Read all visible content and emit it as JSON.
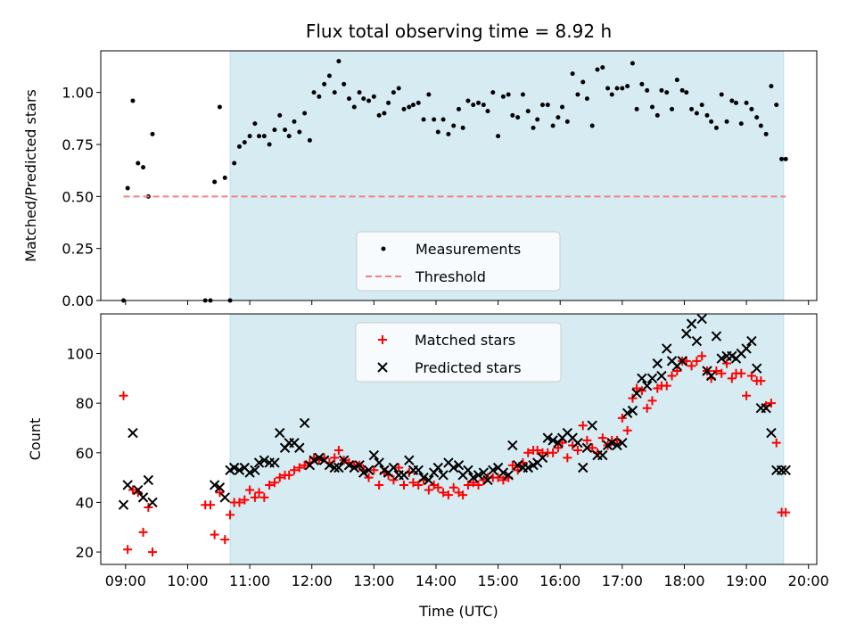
{
  "figure": {
    "title": "Flux total observing time = 8.92 h",
    "xlabel": "Time (UTC)",
    "x_ticks": [
      "09:00",
      "10:00",
      "11:00",
      "12:00",
      "13:00",
      "14:00",
      "15:00",
      "16:00",
      "17:00",
      "18:00",
      "19:00",
      "20:00"
    ]
  },
  "colors": {
    "shade": "#add8e6",
    "measurement": "#000000",
    "threshold": "#f08080",
    "matched": "#ff0000",
    "predicted": "#000000"
  },
  "chart_data": [
    {
      "type": "scatter",
      "ylabel": "Matched/Predicted stars",
      "xlim": [
        "08:36",
        "20:08"
      ],
      "ylim": [
        0,
        1.2
      ],
      "y_ticks": [
        "0.00",
        "0.25",
        "0.50",
        "0.75",
        "1.00"
      ],
      "shaded_span": [
        "10:41",
        "19:36"
      ],
      "legend_position": "lower center",
      "series": [
        {
          "name": "Measurements",
          "x": [
            "08:58",
            "09:02",
            "09:07",
            "09:12",
            "09:17",
            "09:22",
            "09:26",
            "10:17",
            "10:22",
            "10:26",
            "10:31",
            "10:36",
            "10:41",
            "10:45",
            "10:50",
            "10:55",
            "11:00",
            "11:05",
            "11:09",
            "11:14",
            "11:19",
            "11:24",
            "11:29",
            "11:34",
            "11:38",
            "11:43",
            "11:48",
            "11:53",
            "11:58",
            "12:02",
            "12:07",
            "12:12",
            "12:17",
            "12:22",
            "12:26",
            "12:31",
            "12:36",
            "12:41",
            "12:46",
            "12:50",
            "12:55",
            "13:00",
            "13:05",
            "13:10",
            "13:14",
            "13:19",
            "13:24",
            "13:29",
            "13:34",
            "13:38",
            "13:43",
            "13:48",
            "13:53",
            "13:58",
            "14:02",
            "14:07",
            "14:12",
            "14:17",
            "14:22",
            "14:26",
            "14:31",
            "14:36",
            "14:41",
            "14:46",
            "14:50",
            "14:55",
            "15:00",
            "15:05",
            "15:10",
            "15:14",
            "15:19",
            "15:24",
            "15:29",
            "15:34",
            "15:38",
            "15:43",
            "15:48",
            "15:53",
            "15:58",
            "16:02",
            "16:07",
            "16:12",
            "16:17",
            "16:22",
            "16:26",
            "16:31",
            "16:36",
            "16:41",
            "16:46",
            "16:50",
            "16:55",
            "17:00",
            "17:05",
            "17:10",
            "17:14",
            "17:19",
            "17:24",
            "17:29",
            "17:34",
            "17:38",
            "17:43",
            "17:48",
            "17:53",
            "17:58",
            "18:02",
            "18:07",
            "18:12",
            "18:17",
            "18:22",
            "18:26",
            "18:31",
            "18:36",
            "18:41",
            "18:46",
            "18:50",
            "18:55",
            "19:00",
            "19:05",
            "19:10",
            "19:14",
            "19:19",
            "19:24",
            "19:29",
            "19:34",
            "19:38"
          ],
          "y": [
            0.0,
            0.54,
            0.96,
            0.66,
            0.64,
            0.5,
            0.8,
            0.0,
            0.0,
            0.57,
            0.93,
            0.59,
            0.0,
            0.66,
            0.74,
            0.76,
            0.79,
            0.85,
            0.79,
            0.79,
            0.75,
            0.82,
            0.89,
            0.82,
            0.79,
            0.86,
            0.81,
            0.9,
            0.77,
            1.0,
            0.98,
            1.04,
            1.08,
            1.0,
            1.15,
            1.04,
            0.97,
            0.93,
            1.0,
            0.97,
            0.96,
            0.98,
            0.89,
            0.9,
            0.95,
            1.0,
            1.02,
            0.92,
            0.93,
            0.94,
            0.95,
            0.87,
            0.99,
            0.87,
            0.81,
            0.87,
            0.8,
            0.84,
            0.92,
            0.83,
            0.96,
            0.94,
            0.95,
            0.94,
            0.91,
            1.0,
            0.79,
            0.98,
            0.99,
            0.89,
            0.88,
            0.99,
            0.91,
            0.83,
            0.87,
            0.94,
            0.94,
            0.84,
            0.88,
            0.93,
            0.86,
            1.09,
            0.99,
            1.05,
            0.97,
            0.84,
            1.11,
            1.12,
            1.02,
            0.99,
            1.02,
            1.02,
            1.03,
            1.14,
            0.92,
            1.04,
            1.01,
            0.93,
            0.89,
            1.01,
            1.0,
            0.92,
            1.06,
            1.01,
            1.0,
            0.92,
            0.9,
            0.94,
            0.89,
            0.86,
            0.83,
            0.99,
            0.86,
            0.96,
            0.95,
            0.85,
            0.95,
            0.92,
            0.88,
            0.84,
            0.8,
            1.03,
            0.94,
            0.68,
            0.68
          ]
        },
        {
          "name": "Threshold",
          "x": [
            "08:58",
            "19:38"
          ],
          "y": [
            0.5,
            0.5
          ]
        }
      ]
    },
    {
      "type": "scatter",
      "ylabel": "Count",
      "xlim": [
        "08:36",
        "20:08"
      ],
      "ylim": [
        15,
        116
      ],
      "y_ticks": [
        "20",
        "40",
        "60",
        "80",
        "100"
      ],
      "shaded_span": [
        "10:41",
        "19:36"
      ],
      "legend_position": "upper center",
      "series": [
        {
          "name": "Matched stars",
          "x": [
            "08:58",
            "09:02",
            "09:07",
            "09:12",
            "09:17",
            "09:22",
            "09:26",
            "10:17",
            "10:22",
            "10:26",
            "10:31",
            "10:36",
            "10:41",
            "10:45",
            "10:50",
            "10:55",
            "11:00",
            "11:05",
            "11:09",
            "11:14",
            "11:19",
            "11:24",
            "11:29",
            "11:34",
            "11:38",
            "11:43",
            "11:48",
            "11:53",
            "11:58",
            "12:02",
            "12:07",
            "12:12",
            "12:17",
            "12:22",
            "12:26",
            "12:31",
            "12:36",
            "12:41",
            "12:46",
            "12:50",
            "12:55",
            "13:00",
            "13:05",
            "13:10",
            "13:14",
            "13:19",
            "13:24",
            "13:29",
            "13:34",
            "13:38",
            "13:43",
            "13:48",
            "13:53",
            "13:58",
            "14:02",
            "14:07",
            "14:12",
            "14:17",
            "14:22",
            "14:26",
            "14:31",
            "14:36",
            "14:41",
            "14:46",
            "14:50",
            "14:55",
            "15:00",
            "15:05",
            "15:10",
            "15:14",
            "15:19",
            "15:24",
            "15:29",
            "15:34",
            "15:38",
            "15:43",
            "15:48",
            "15:53",
            "15:58",
            "16:02",
            "16:07",
            "16:12",
            "16:17",
            "16:22",
            "16:26",
            "16:31",
            "16:36",
            "16:41",
            "16:46",
            "16:50",
            "16:55",
            "17:00",
            "17:05",
            "17:10",
            "17:14",
            "17:19",
            "17:24",
            "17:29",
            "17:34",
            "17:38",
            "17:43",
            "17:48",
            "17:53",
            "17:58",
            "18:02",
            "18:07",
            "18:12",
            "18:17",
            "18:22",
            "18:26",
            "18:31",
            "18:36",
            "18:41",
            "18:46",
            "18:50",
            "18:55",
            "19:00",
            "19:05",
            "19:10",
            "19:14",
            "19:19",
            "19:24",
            "19:29",
            "19:34",
            "19:38"
          ],
          "y": [
            83,
            21,
            45,
            44,
            28,
            38,
            20,
            39,
            39,
            27,
            44,
            25,
            35,
            40,
            40,
            41,
            45,
            42,
            44,
            42,
            47,
            48,
            50,
            51,
            51,
            53,
            54,
            55,
            56,
            58,
            57,
            58,
            56,
            58,
            61,
            57,
            56,
            55,
            55,
            53,
            50,
            53,
            47,
            52,
            51,
            49,
            54,
            47,
            52,
            48,
            47,
            49,
            45,
            47,
            46,
            44,
            43,
            46,
            44,
            43,
            47,
            48,
            47,
            49,
            50,
            50,
            50,
            49,
            50,
            55,
            53,
            56,
            60,
            61,
            61,
            60,
            60,
            60,
            62,
            64,
            58,
            63,
            61,
            71,
            65,
            62,
            60,
            66,
            63,
            65,
            65,
            74,
            69,
            82,
            86,
            85,
            78,
            81,
            86,
            87,
            87,
            91,
            93,
            97,
            97,
            95,
            97,
            99,
            93,
            90,
            93,
            92,
            96,
            90,
            92,
            92,
            83,
            91,
            89,
            89,
            79,
            80,
            64,
            36,
            36
          ]
        },
        {
          "name": "Predicted stars",
          "x": [
            "08:58",
            "09:02",
            "09:07",
            "09:12",
            "09:17",
            "09:22",
            "09:26",
            "10:17",
            "10:22",
            "10:26",
            "10:31",
            "10:36",
            "10:41",
            "10:45",
            "10:50",
            "10:55",
            "11:00",
            "11:05",
            "11:09",
            "11:14",
            "11:19",
            "11:24",
            "11:29",
            "11:34",
            "11:38",
            "11:43",
            "11:48",
            "11:53",
            "11:58",
            "12:02",
            "12:07",
            "12:12",
            "12:17",
            "12:22",
            "12:26",
            "12:31",
            "12:36",
            "12:41",
            "12:46",
            "12:50",
            "12:55",
            "13:00",
            "13:05",
            "13:10",
            "13:14",
            "13:19",
            "13:24",
            "13:29",
            "13:34",
            "13:38",
            "13:43",
            "13:48",
            "13:53",
            "13:58",
            "14:02",
            "14:07",
            "14:12",
            "14:17",
            "14:22",
            "14:26",
            "14:31",
            "14:36",
            "14:41",
            "14:46",
            "14:50",
            "14:55",
            "15:00",
            "15:05",
            "15:10",
            "15:14",
            "15:19",
            "15:24",
            "15:29",
            "15:34",
            "15:38",
            "15:43",
            "15:48",
            "15:53",
            "15:58",
            "16:02",
            "16:07",
            "16:12",
            "16:17",
            "16:22",
            "16:26",
            "16:31",
            "16:36",
            "16:41",
            "16:46",
            "16:50",
            "16:55",
            "17:00",
            "17:05",
            "17:10",
            "17:14",
            "17:19",
            "17:24",
            "17:29",
            "17:34",
            "17:38",
            "17:43",
            "17:48",
            "17:53",
            "17:58",
            "18:02",
            "18:07",
            "18:12",
            "18:17",
            "18:22",
            "18:26",
            "18:31",
            "18:36",
            "18:41",
            "18:46",
            "18:50",
            "18:55",
            "19:00",
            "19:05",
            "19:10",
            "19:14",
            "19:19",
            "19:24",
            "19:29",
            "19:34",
            "19:38"
          ],
          "y": [
            39,
            47,
            68,
            45,
            42,
            49,
            40,
            null,
            null,
            47,
            46,
            42,
            53,
            54,
            53,
            54,
            52,
            53,
            56,
            57,
            56,
            56,
            68,
            62,
            64,
            64,
            62,
            72,
            55,
            57,
            58,
            57,
            55,
            54,
            54,
            57,
            55,
            54,
            55,
            52,
            53,
            59,
            56,
            53,
            52,
            54,
            51,
            51,
            57,
            53,
            53,
            50,
            49,
            52,
            54,
            51,
            56,
            54,
            55,
            51,
            53,
            50,
            51,
            52,
            49,
            53,
            54,
            52,
            51,
            63,
            55,
            54,
            54,
            55,
            56,
            58,
            66,
            65,
            64,
            66,
            68,
            66,
            64,
            54,
            62,
            71,
            59,
            59,
            63,
            64,
            63,
            64,
            76,
            77,
            84,
            90,
            87,
            90,
            96,
            91,
            102,
            97,
            95,
            97,
            108,
            112,
            105,
            114,
            93,
            91,
            107,
            98,
            99,
            99,
            98,
            100,
            102,
            105,
            94,
            78,
            78,
            68,
            53,
            53,
            53
          ]
        }
      ]
    }
  ]
}
